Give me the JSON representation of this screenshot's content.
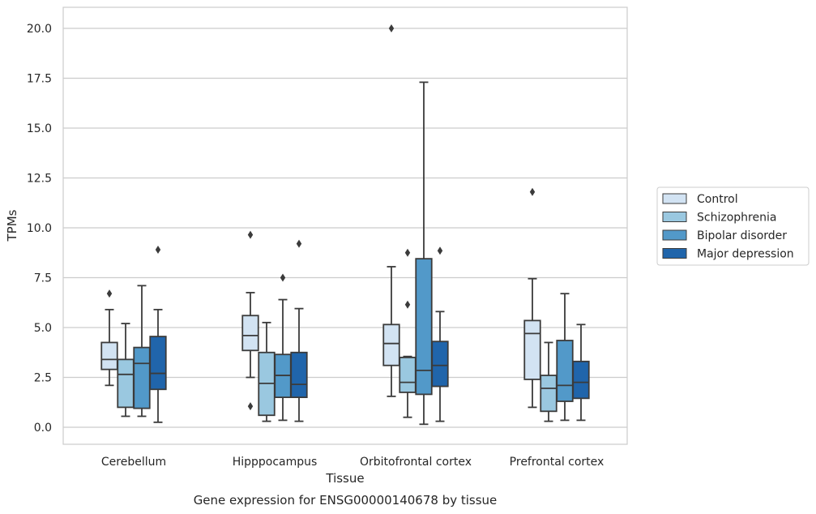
{
  "chart_data": {
    "type": "boxplot",
    "title": "",
    "caption": "Gene expression for ENSG00000140678 by tissue",
    "xlabel": "Tissue",
    "ylabel": "TPMs",
    "ylim": [
      -0.8,
      21.0
    ],
    "yticks": [
      "0.0",
      "2.5",
      "5.0",
      "7.5",
      "10.0",
      "12.5",
      "15.0",
      "17.5",
      "20.0"
    ],
    "grid": "horizontal",
    "legend_position": "right",
    "categories": [
      "Cerebellum",
      "Hipppocampus",
      "Orbitofrontal cortex",
      "Prefrontal cortex"
    ],
    "series": [
      {
        "name": "Control",
        "color": "#d2e3f3",
        "boxes": [
          {
            "min": 2.1,
            "q1": 2.9,
            "median": 3.4,
            "q3": 4.25,
            "max": 5.9,
            "outliers": [
              6.7
            ]
          },
          {
            "min": 2.5,
            "q1": 3.85,
            "median": 4.6,
            "q3": 5.6,
            "max": 6.75,
            "outliers": [
              9.65,
              1.05
            ]
          },
          {
            "min": 1.55,
            "q1": 3.1,
            "median": 4.2,
            "q3": 5.15,
            "max": 8.05,
            "outliers": [
              20.0
            ]
          },
          {
            "min": 1.0,
            "q1": 2.4,
            "median": 4.7,
            "q3": 5.35,
            "max": 7.45,
            "outliers": [
              11.8
            ]
          }
        ]
      },
      {
        "name": "Schizophrenia",
        "color": "#9ac8e0",
        "boxes": [
          {
            "min": 0.55,
            "q1": 1.0,
            "median": 2.65,
            "q3": 3.4,
            "max": 5.2,
            "outliers": []
          },
          {
            "min": 0.3,
            "q1": 0.6,
            "median": 2.2,
            "q3": 3.75,
            "max": 5.25,
            "outliers": []
          },
          {
            "min": 0.5,
            "q1": 1.75,
            "median": 2.25,
            "q3": 3.5,
            "max": 3.55,
            "outliers": [
              8.75,
              6.15
            ]
          },
          {
            "min": 0.3,
            "q1": 0.8,
            "median": 1.95,
            "q3": 2.6,
            "max": 4.25,
            "outliers": []
          }
        ]
      },
      {
        "name": "Bipolar disorder",
        "color": "#5299c9",
        "boxes": [
          {
            "min": 0.55,
            "q1": 0.95,
            "median": 3.2,
            "q3": 4.0,
            "max": 7.1,
            "outliers": []
          },
          {
            "min": 0.35,
            "q1": 1.5,
            "median": 2.6,
            "q3": 3.65,
            "max": 6.4,
            "outliers": [
              7.5
            ]
          },
          {
            "min": 0.15,
            "q1": 1.65,
            "median": 2.85,
            "q3": 8.45,
            "max": 17.3,
            "outliers": []
          },
          {
            "min": 0.35,
            "q1": 1.3,
            "median": 2.1,
            "q3": 4.35,
            "max": 6.7,
            "outliers": []
          }
        ]
      },
      {
        "name": "Major depression",
        "color": "#2065ab",
        "boxes": [
          {
            "min": 0.25,
            "q1": 1.9,
            "median": 2.7,
            "q3": 4.55,
            "max": 5.9,
            "outliers": [
              8.9
            ]
          },
          {
            "min": 0.3,
            "q1": 1.5,
            "median": 2.15,
            "q3": 3.75,
            "max": 5.95,
            "outliers": [
              9.2
            ]
          },
          {
            "min": 0.3,
            "q1": 2.05,
            "median": 3.1,
            "q3": 4.3,
            "max": 5.8,
            "outliers": [
              8.85
            ]
          },
          {
            "min": 0.35,
            "q1": 1.45,
            "median": 2.25,
            "q3": 3.3,
            "max": 5.15,
            "outliers": []
          }
        ]
      }
    ]
  }
}
